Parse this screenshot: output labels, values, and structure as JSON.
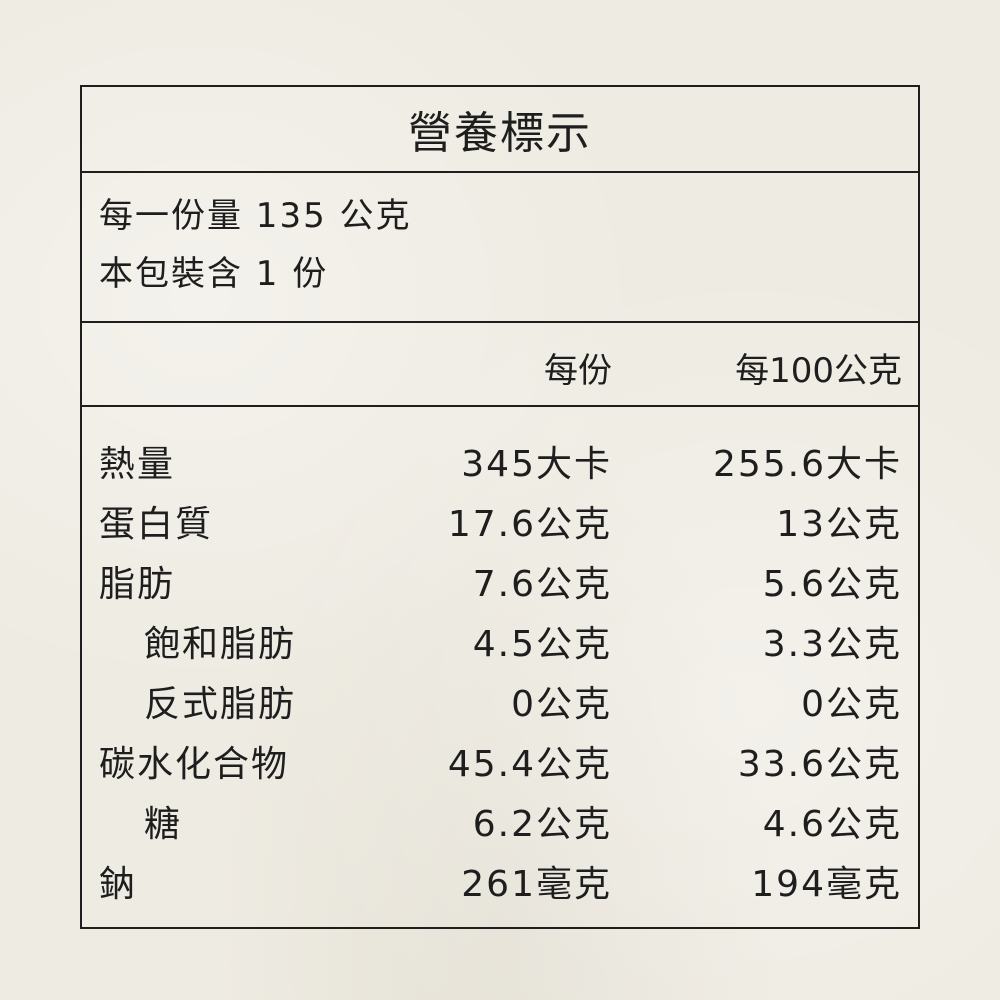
{
  "title": "營養標示",
  "serving": {
    "size": "每一份量 135 公克",
    "count": "本包裝含 1 份"
  },
  "columns": {
    "per_serving": "每份",
    "per_100g": "每100公克"
  },
  "rows": [
    {
      "label": "熱量",
      "indent": false,
      "per_serving": "345大卡",
      "per_100g": "255.6大卡"
    },
    {
      "label": "蛋白質",
      "indent": false,
      "per_serving": "17.6公克",
      "per_100g": "13公克"
    },
    {
      "label": "脂肪",
      "indent": false,
      "per_serving": "7.6公克",
      "per_100g": "5.6公克"
    },
    {
      "label": "飽和脂肪",
      "indent": true,
      "per_serving": "4.5公克",
      "per_100g": "3.3公克"
    },
    {
      "label": "反式脂肪",
      "indent": true,
      "per_serving": "0公克",
      "per_100g": "0公克"
    },
    {
      "label": "碳水化合物",
      "indent": false,
      "per_serving": "45.4公克",
      "per_100g": "33.6公克"
    },
    {
      "label": "糖",
      "indent": true,
      "per_serving": "6.2公克",
      "per_100g": "4.6公克"
    },
    {
      "label": "鈉",
      "indent": false,
      "per_serving": "261毫克",
      "per_100g": "194毫克"
    }
  ]
}
